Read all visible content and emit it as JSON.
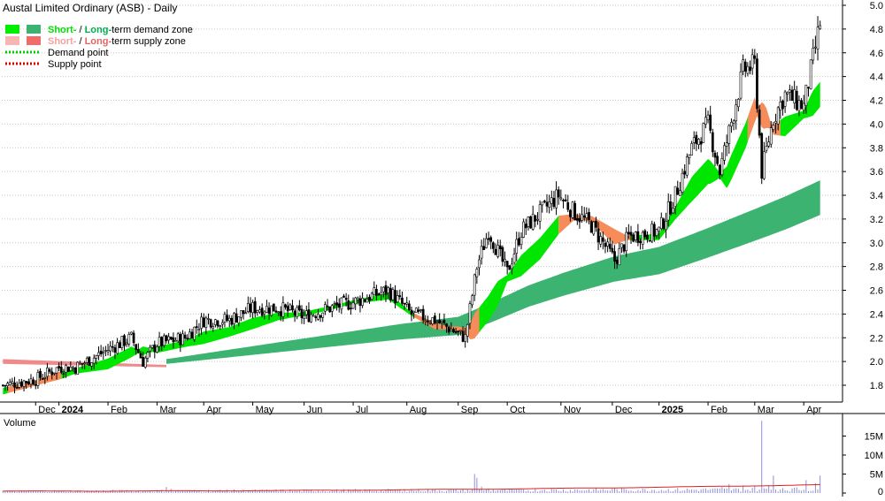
{
  "chart_data": {
    "type": "candlestick",
    "title": "Austal Limited Ordinary (ASB) - Daily",
    "legend": {
      "placement": "top-left",
      "entries": [
        {
          "id": "demand",
          "parts": [
            "Short-",
            " / ",
            "Long-",
            "term demand zone"
          ],
          "colors": [
            "#00e000",
            "#000000",
            "#00b050",
            "#000000"
          ],
          "swatches": [
            "#00ee00",
            "#3cb371"
          ]
        },
        {
          "id": "supply",
          "parts": [
            "Short-",
            " / ",
            "Long-",
            "term supply zone"
          ],
          "colors": [
            "#f4a0a0",
            "#000000",
            "#e06666",
            "#000000"
          ],
          "swatches": [
            "#f9b4b4",
            "#f26b6b"
          ]
        },
        {
          "id": "demand-point",
          "label": "Demand point",
          "line_color": "#00cc00"
        },
        {
          "id": "supply-point",
          "label": "Supply point",
          "line_color": "#d40000"
        }
      ]
    },
    "price_axis": {
      "ticks": [
        "5.0",
        "4.8",
        "4.6",
        "4.4",
        "4.2",
        "4.0",
        "3.8",
        "3.6",
        "3.4",
        "3.2",
        "3.0",
        "2.8",
        "2.6",
        "2.4",
        "2.2",
        "2.0",
        "1.8"
      ],
      "ylim": [
        1.6,
        5.0
      ],
      "grid": true
    },
    "x_axis": {
      "labels": [
        {
          "t": "Dec",
          "bold": false,
          "i": 14
        },
        {
          "t": "2024",
          "bold": true,
          "i": 24
        },
        {
          "t": "Feb",
          "bold": false,
          "i": 45
        },
        {
          "t": "Mar",
          "bold": false,
          "i": 66
        },
        {
          "t": "Apr",
          "bold": false,
          "i": 86
        },
        {
          "t": "May",
          "bold": false,
          "i": 107
        },
        {
          "t": "Jun",
          "bold": false,
          "i": 129
        },
        {
          "t": "Jul",
          "bold": false,
          "i": 150
        },
        {
          "t": "Aug",
          "bold": false,
          "i": 173
        },
        {
          "t": "Sep",
          "bold": false,
          "i": 195
        },
        {
          "t": "Oct",
          "bold": false,
          "i": 216
        },
        {
          "t": "Nov",
          "bold": false,
          "i": 239
        },
        {
          "t": "Dec",
          "bold": false,
          "i": 261
        },
        {
          "t": "2025",
          "bold": true,
          "i": 281
        },
        {
          "t": "Feb",
          "bold": false,
          "i": 302
        },
        {
          "t": "Mar",
          "bold": false,
          "i": 322
        },
        {
          "t": "Apr",
          "bold": false,
          "i": 343
        }
      ]
    },
    "price_anchors": [
      [
        0,
        1.8
      ],
      [
        14,
        1.85
      ],
      [
        24,
        1.95
      ],
      [
        31,
        1.95
      ],
      [
        45,
        2.1
      ],
      [
        55,
        2.2
      ],
      [
        60,
        2.0
      ],
      [
        66,
        2.15
      ],
      [
        78,
        2.2
      ],
      [
        86,
        2.35
      ],
      [
        97,
        2.35
      ],
      [
        107,
        2.45
      ],
      [
        118,
        2.45
      ],
      [
        129,
        2.38
      ],
      [
        140,
        2.45
      ],
      [
        150,
        2.5
      ],
      [
        165,
        2.6
      ],
      [
        175,
        2.4
      ],
      [
        185,
        2.35
      ],
      [
        198,
        2.2
      ],
      [
        203,
        2.8
      ],
      [
        208,
        3.1
      ],
      [
        216,
        2.75
      ],
      [
        222,
        3.1
      ],
      [
        230,
        3.25
      ],
      [
        238,
        3.4
      ],
      [
        245,
        3.25
      ],
      [
        252,
        3.15
      ],
      [
        262,
        2.85
      ],
      [
        268,
        3.05
      ],
      [
        281,
        3.1
      ],
      [
        288,
        3.4
      ],
      [
        295,
        3.8
      ],
      [
        302,
        4.0
      ],
      [
        307,
        3.6
      ],
      [
        313,
        4.1
      ],
      [
        317,
        4.45
      ],
      [
        322,
        4.5
      ],
      [
        325,
        3.6
      ],
      [
        330,
        4.05
      ],
      [
        335,
        4.25
      ],
      [
        343,
        4.15
      ],
      [
        347,
        4.55
      ],
      [
        350,
        4.85
      ]
    ],
    "demand_anchors": [
      [
        0,
        1.75
      ],
      [
        14,
        1.82
      ],
      [
        24,
        1.88
      ],
      [
        31,
        1.92
      ],
      [
        45,
        1.98
      ],
      [
        55,
        2.08
      ],
      [
        66,
        2.1
      ],
      [
        78,
        2.15
      ],
      [
        86,
        2.2
      ],
      [
        97,
        2.25
      ],
      [
        107,
        2.32
      ],
      [
        118,
        2.38
      ],
      [
        129,
        2.4
      ],
      [
        140,
        2.45
      ],
      [
        150,
        2.5
      ],
      [
        165,
        2.55
      ],
      [
        175,
        2.4
      ],
      [
        185,
        2.3
      ],
      [
        195,
        2.27
      ],
      [
        200,
        2.25
      ],
      [
        208,
        2.45
      ],
      [
        216,
        2.7
      ],
      [
        230,
        2.95
      ],
      [
        238,
        3.15
      ],
      [
        245,
        3.22
      ],
      [
        252,
        3.2
      ],
      [
        262,
        3.05
      ],
      [
        268,
        3.04
      ],
      [
        281,
        3.05
      ],
      [
        295,
        3.45
      ],
      [
        302,
        3.6
      ],
      [
        310,
        3.55
      ],
      [
        318,
        3.9
      ],
      [
        322,
        4.12
      ],
      [
        327,
        4.05
      ],
      [
        330,
        3.95
      ],
      [
        335,
        3.98
      ],
      [
        343,
        4.08
      ],
      [
        350,
        4.25
      ]
    ],
    "longterm_anchors": [
      [
        70,
        2.0
      ],
      [
        90,
        2.05
      ],
      [
        110,
        2.1
      ],
      [
        130,
        2.15
      ],
      [
        150,
        2.2
      ],
      [
        170,
        2.25
      ],
      [
        195,
        2.3
      ],
      [
        210,
        2.42
      ],
      [
        225,
        2.55
      ],
      [
        240,
        2.65
      ],
      [
        262,
        2.78
      ],
      [
        281,
        2.85
      ],
      [
        302,
        3.0
      ],
      [
        322,
        3.15
      ],
      [
        335,
        3.25
      ],
      [
        350,
        3.38
      ]
    ],
    "zones": {
      "short_supply": [
        [
          2,
          24
        ],
        [
          176,
          203
        ],
        [
          238,
          268
        ],
        [
          319,
          332
        ]
      ],
      "long_supply": [
        [
          0,
          70
        ]
      ],
      "short_demand_color": "#00e600",
      "short_supply_color": "#f58c5a",
      "long_demand_color": "#3cb371",
      "long_supply_color": "#f08a8a"
    },
    "volume_axis": {
      "label": "Volume",
      "ticks": [
        "15M",
        "10M",
        "5M",
        "0"
      ],
      "ylim": [
        0,
        20
      ],
      "unit": "M"
    },
    "volume_spikes": [
      [
        70,
        1.6
      ],
      [
        72,
        1.1
      ],
      [
        96,
        0.9
      ],
      [
        112,
        0.8
      ],
      [
        172,
        1.0
      ],
      [
        202,
        5.0
      ],
      [
        203,
        4.0
      ],
      [
        205,
        1.7
      ],
      [
        208,
        1.2
      ],
      [
        220,
        1.0
      ],
      [
        232,
        0.9
      ],
      [
        262,
        1.4
      ],
      [
        300,
        1.1
      ],
      [
        308,
        1.6
      ],
      [
        311,
        2.4
      ],
      [
        317,
        2.0
      ],
      [
        322,
        1.8
      ],
      [
        325,
        19.0
      ],
      [
        328,
        2.0
      ],
      [
        330,
        4.6
      ],
      [
        334,
        1.3
      ],
      [
        340,
        1.5
      ],
      [
        344,
        3.4
      ],
      [
        348,
        2.6
      ],
      [
        350,
        4.6
      ]
    ],
    "volume_base": 0.5,
    "volume_ma_end": 2.2,
    "n_bars": 351,
    "colors": {
      "up_candle": "#ffffff",
      "down_candle": "#000000",
      "wick": "#000000",
      "volume_bar": "#8f8fd6",
      "volume_ma": "#e02020",
      "frame": "#000000"
    }
  }
}
